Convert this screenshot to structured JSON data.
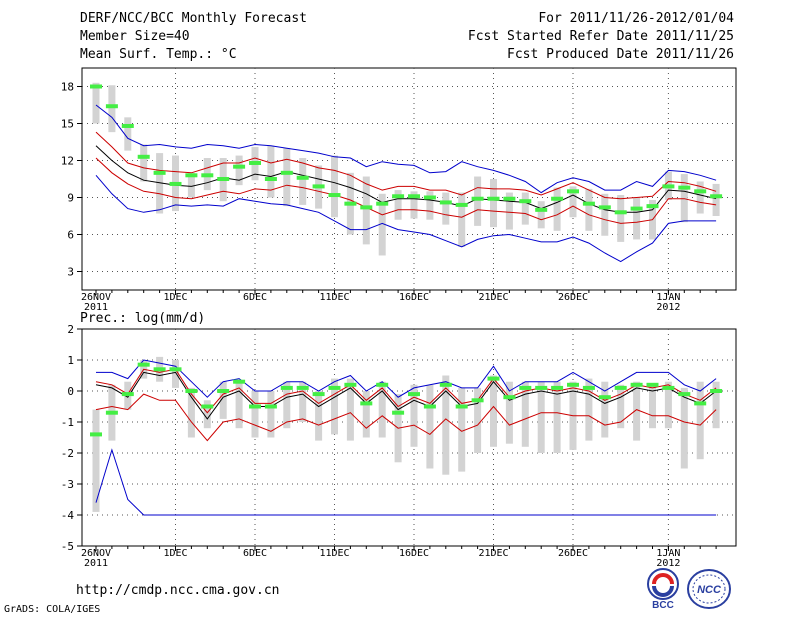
{
  "header": {
    "title": "DERF/NCC/BCC Monthly Forecast",
    "member_size": "Member Size=40",
    "variable": "Mean Surf. Temp.: °C",
    "period": "For 2011/11/26-2012/01/04",
    "started": "Fcst Started Refer Date 2011/11/25",
    "produced": "Fcst Produced Date 2011/11/26"
  },
  "footer": {
    "url": "http://cmdp.ncc.cma.gov.cn",
    "credit": "GrADS: COLA/IGES",
    "logo1_text": "BCC",
    "logo2_text": "NCC"
  },
  "colors": {
    "ensemble_mean": "#000000",
    "spread": "#d3d3d3",
    "inner": "#cc0000",
    "outer": "#0000cc",
    "median": "#44ee44",
    "axis": "#000000"
  },
  "chart_data": [
    {
      "type": "line",
      "title": "Mean Surf. Temp.: °C",
      "ylim": [
        1.5,
        19.5
      ],
      "yticks": [
        3,
        6,
        9,
        12,
        15,
        18
      ],
      "xlabels": [
        {
          "day": 0,
          "label": "26NOV",
          "sub": "2011"
        },
        {
          "day": 5,
          "label": "1DEC"
        },
        {
          "day": 10,
          "label": "6DEC"
        },
        {
          "day": 15,
          "label": "11DEC"
        },
        {
          "day": 20,
          "label": "16DEC"
        },
        {
          "day": 25,
          "label": "21DEC"
        },
        {
          "day": 30,
          "label": "26DEC"
        },
        {
          "day": 36,
          "label": "1JAN",
          "sub": "2012"
        }
      ],
      "days": 40,
      "series": [
        {
          "name": "mean",
          "values": [
            13.2,
            12.0,
            11.0,
            10.4,
            10.2,
            10.0,
            9.9,
            10.2,
            10.6,
            10.4,
            10.9,
            10.7,
            11.1,
            10.8,
            10.5,
            10.2,
            9.8,
            9.3,
            8.6,
            8.9,
            8.9,
            8.8,
            8.6,
            8.3,
            8.9,
            8.8,
            8.7,
            8.6,
            8.1,
            8.6,
            9.2,
            8.5,
            8.0,
            7.8,
            7.8,
            8.0,
            9.6,
            9.5,
            9.2,
            8.9
          ]
        },
        {
          "name": "upper_inner",
          "values": [
            14.3,
            13.1,
            11.8,
            11.4,
            11.2,
            11.1,
            11.0,
            11.4,
            11.8,
            11.8,
            12.2,
            11.8,
            12.1,
            11.8,
            11.4,
            11.2,
            10.8,
            10.1,
            9.6,
            9.9,
            9.9,
            9.6,
            9.6,
            9.2,
            9.8,
            9.7,
            9.7,
            9.6,
            9.2,
            9.7,
            10.2,
            9.6,
            9.0,
            8.9,
            9.0,
            9.1,
            10.3,
            10.2,
            9.9,
            9.5
          ]
        },
        {
          "name": "lower_inner",
          "values": [
            12.2,
            11.0,
            10.1,
            9.5,
            9.3,
            9.0,
            8.9,
            9.2,
            9.5,
            9.3,
            9.7,
            9.6,
            10.0,
            9.8,
            9.5,
            9.2,
            8.8,
            8.2,
            7.6,
            8.0,
            8.0,
            7.9,
            7.6,
            7.4,
            8.0,
            7.9,
            7.8,
            7.7,
            7.2,
            7.6,
            8.3,
            7.6,
            7.2,
            6.9,
            7.0,
            7.2,
            8.9,
            8.9,
            8.6,
            8.4
          ]
        },
        {
          "name": "upper_outer",
          "values": [
            16.5,
            15.5,
            13.8,
            13.2,
            13.3,
            13.1,
            13.0,
            13.3,
            13.2,
            13.0,
            13.3,
            13.2,
            13.0,
            12.8,
            12.6,
            12.3,
            12.2,
            11.5,
            11.9,
            11.7,
            11.6,
            11.0,
            11.1,
            11.9,
            11.5,
            11.2,
            10.8,
            10.3,
            9.4,
            10.2,
            10.6,
            10.3,
            9.6,
            9.6,
            10.3,
            9.9,
            11.2,
            11.1,
            10.8,
            10.4
          ]
        },
        {
          "name": "lower_outer",
          "values": [
            10.8,
            9.3,
            8.1,
            7.8,
            8.0,
            8.4,
            8.3,
            8.4,
            8.3,
            8.9,
            8.7,
            8.5,
            8.4,
            8.1,
            7.8,
            7.1,
            6.4,
            6.4,
            6.9,
            6.4,
            6.2,
            6.0,
            5.5,
            5.0,
            5.6,
            5.9,
            6.0,
            5.7,
            5.4,
            5.4,
            5.8,
            5.3,
            4.5,
            3.8,
            4.6,
            5.3,
            6.9,
            7.1,
            7.1,
            7.1
          ]
        }
      ],
      "boxes": {
        "low": [
          15.0,
          14.3,
          12.8,
          10.3,
          7.7,
          7.9,
          9.0,
          9.6,
          8.7,
          10.0,
          10.4,
          9.0,
          8.3,
          8.4,
          8.1,
          7.4,
          6.0,
          5.2,
          4.3,
          7.2,
          7.3,
          7.2,
          6.8,
          5.0,
          6.7,
          6.6,
          6.4,
          6.8,
          6.5,
          6.3,
          7.4,
          6.3,
          5.9,
          5.4,
          5.6,
          5.6,
          8.8,
          7.0,
          7.7,
          7.5
        ],
        "high": [
          18.3,
          18.1,
          15.5,
          13.3,
          12.6,
          12.4,
          11.0,
          12.2,
          12.2,
          12.4,
          13.1,
          13.2,
          13.0,
          12.2,
          11.6,
          12.4,
          11.0,
          10.7,
          9.3,
          9.6,
          9.5,
          9.5,
          9.4,
          9.4,
          10.7,
          10.5,
          9.4,
          9.4,
          8.7,
          9.8,
          9.9,
          9.7,
          9.3,
          9.2,
          9.0,
          8.8,
          11.1,
          10.9,
          10.3,
          10.1
        ]
      },
      "median": [
        18.0,
        16.4,
        14.8,
        12.3,
        11.0,
        10.1,
        10.8,
        10.8,
        10.5,
        11.5,
        11.8,
        10.5,
        11.0,
        10.6,
        9.9,
        9.2,
        8.5,
        8.2,
        8.5,
        9.1,
        9.1,
        9.0,
        8.6,
        8.4,
        8.9,
        8.9,
        8.9,
        8.7,
        8.0,
        8.9,
        9.5,
        8.5,
        8.2,
        7.8,
        8.1,
        8.3,
        9.9,
        9.8,
        9.5,
        9.1
      ]
    },
    {
      "type": "line",
      "title": "Prec.: log(mm/d)",
      "ylim": [
        -5,
        2
      ],
      "yticks": [
        -5,
        -4,
        -3,
        -2,
        -1,
        0,
        1,
        2
      ],
      "xlabels": [
        {
          "day": 0,
          "label": "26NOV",
          "sub": "2011"
        },
        {
          "day": 5,
          "label": "1DEC"
        },
        {
          "day": 10,
          "label": "6DEC"
        },
        {
          "day": 15,
          "label": "11DEC"
        },
        {
          "day": 20,
          "label": "16DEC"
        },
        {
          "day": 25,
          "label": "21DEC"
        },
        {
          "day": 30,
          "label": "26DEC"
        },
        {
          "day": 36,
          "label": "1JAN",
          "sub": "2012"
        }
      ],
      "days": 40,
      "series": [
        {
          "name": "mean",
          "values": [
            0.2,
            0.1,
            -0.2,
            0.6,
            0.5,
            0.6,
            -0.2,
            -0.9,
            -0.2,
            0.0,
            -0.5,
            -0.5,
            -0.2,
            -0.1,
            -0.5,
            -0.2,
            0.1,
            -0.4,
            0.0,
            -0.6,
            -0.3,
            -0.5,
            0.0,
            -0.5,
            -0.4,
            0.3,
            -0.3,
            -0.1,
            0.0,
            -0.1,
            0.0,
            -0.1,
            -0.4,
            -0.2,
            0.1,
            0.0,
            0.1,
            -0.2,
            -0.4,
            0.0
          ]
        },
        {
          "name": "upper_inner",
          "values": [
            0.3,
            0.2,
            -0.1,
            0.7,
            0.6,
            0.7,
            -0.1,
            -0.7,
            -0.1,
            0.1,
            -0.4,
            -0.4,
            -0.1,
            0.0,
            -0.4,
            -0.1,
            0.2,
            -0.3,
            0.1,
            -0.5,
            -0.2,
            -0.4,
            0.1,
            -0.4,
            -0.3,
            0.4,
            -0.2,
            0.0,
            0.1,
            0.0,
            0.1,
            0.0,
            -0.3,
            -0.1,
            0.2,
            0.1,
            0.2,
            -0.1,
            -0.3,
            0.1
          ]
        },
        {
          "name": "lower_inner",
          "values": [
            -0.6,
            -0.5,
            -0.6,
            -0.1,
            -0.3,
            -0.3,
            -1.0,
            -1.6,
            -1.0,
            -0.9,
            -1.1,
            -1.3,
            -1.0,
            -0.9,
            -1.1,
            -0.9,
            -0.7,
            -1.2,
            -0.8,
            -1.2,
            -1.1,
            -1.4,
            -0.9,
            -1.3,
            -1.1,
            -0.5,
            -1.1,
            -0.9,
            -0.7,
            -0.7,
            -0.8,
            -0.8,
            -1.1,
            -1.0,
            -0.6,
            -0.8,
            -0.8,
            -1.0,
            -1.1,
            -0.6
          ]
        },
        {
          "name": "upper_outer",
          "values": [
            0.6,
            0.6,
            0.4,
            1.0,
            0.9,
            0.8,
            0.3,
            -0.2,
            0.3,
            0.4,
            0.0,
            0.0,
            0.3,
            0.3,
            0.0,
            0.3,
            0.5,
            0.0,
            0.3,
            -0.2,
            0.1,
            0.2,
            0.3,
            0.1,
            0.1,
            0.8,
            0.0,
            0.3,
            0.3,
            0.3,
            0.6,
            0.3,
            0.0,
            0.3,
            0.6,
            0.6,
            0.6,
            0.2,
            0.0,
            0.4
          ]
        },
        {
          "name": "lower_outer",
          "values": [
            -3.6,
            -1.9,
            -3.5,
            -4.0,
            -4.0,
            -4.0,
            -4.0,
            -4.0,
            -4.0,
            -4.0,
            -4.0,
            -4.0,
            -4.0,
            -4.0,
            -4.0,
            -4.0,
            -4.0,
            -4.0,
            -4.0,
            -4.0,
            -4.0,
            -4.0,
            -4.0,
            -4.0,
            -4.0,
            -4.0,
            -4.0,
            -4.0,
            -4.0,
            -4.0,
            -4.0,
            -4.0,
            -4.0,
            -4.0,
            -4.0,
            -4.0,
            -4.0,
            -4.0,
            -4.0,
            -4.0
          ]
        }
      ],
      "boxes": {
        "low": [
          -3.9,
          -1.6,
          -0.6,
          0.4,
          0.3,
          0.1,
          -1.5,
          -1.2,
          -0.9,
          -1.2,
          -1.5,
          -1.5,
          -1.2,
          -1.0,
          -1.6,
          -1.4,
          -1.6,
          -1.5,
          -1.5,
          -2.3,
          -1.8,
          -2.5,
          -2.7,
          -2.6,
          -2.0,
          -1.8,
          -1.7,
          -1.8,
          -2.0,
          -2.0,
          -1.9,
          -1.6,
          -1.5,
          -1.2,
          -1.6,
          -1.2,
          -1.2,
          -2.5,
          -2.2,
          -1.2
        ],
        "high": [
          -0.6,
          0.2,
          0.3,
          1.0,
          1.1,
          1.0,
          0.1,
          -0.3,
          0.3,
          0.3,
          0.0,
          0.0,
          0.3,
          0.3,
          0.0,
          0.4,
          0.4,
          0.0,
          0.3,
          -0.1,
          0.2,
          0.2,
          0.5,
          0.1,
          0.1,
          0.5,
          0.3,
          0.3,
          0.3,
          0.3,
          0.3,
          0.4,
          0.3,
          0.2,
          0.3,
          0.2,
          0.3,
          0.1,
          0.3,
          0.3
        ]
      },
      "median": [
        -1.4,
        -0.7,
        -0.1,
        0.85,
        0.7,
        0.7,
        0.0,
        -0.5,
        0.0,
        0.3,
        -0.5,
        -0.5,
        0.1,
        0.1,
        -0.1,
        0.1,
        0.2,
        -0.4,
        0.2,
        -0.7,
        -0.1,
        -0.5,
        0.2,
        -0.5,
        -0.3,
        0.4,
        -0.2,
        0.1,
        0.1,
        0.1,
        0.2,
        0.1,
        -0.2,
        0.1,
        0.2,
        0.2,
        0.1,
        -0.1,
        -0.4,
        0.0
      ]
    }
  ]
}
